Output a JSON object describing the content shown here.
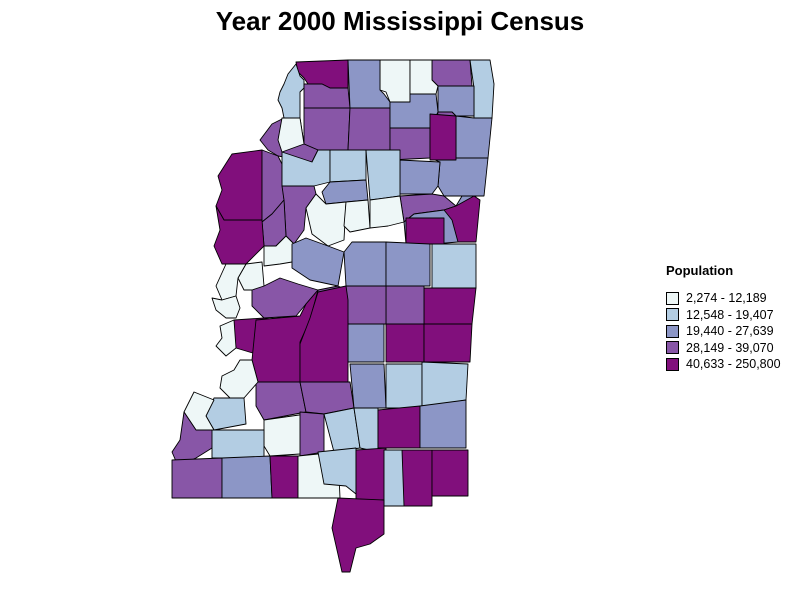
{
  "title": "Year 2000 Mississippi Census",
  "legend": {
    "title": "Population",
    "items": [
      {
        "label": "2,274 - 12,189",
        "color": "#eef7f7"
      },
      {
        "label": "12,548 - 19,407",
        "color": "#b3cde3"
      },
      {
        "label": "19,440 - 27,639",
        "color": "#8c96c6"
      },
      {
        "label": "28,149 - 39,070",
        "color": "#8856a7"
      },
      {
        "label": "40,633 - 250,800",
        "color": "#810f7c"
      }
    ]
  },
  "counties": [
    {
      "cls": 4
    },
    {
      "cls": 1
    },
    {
      "cls": 3
    },
    {
      "cls": 0
    },
    {
      "cls": 2
    },
    {
      "cls": 3
    },
    {
      "cls": 1
    },
    {
      "cls": 0
    },
    {
      "cls": 2
    },
    {
      "cls": 3
    },
    {
      "cls": 3
    },
    {
      "cls": 2
    },
    {
      "cls": 2
    },
    {
      "cls": 3
    },
    {
      "cls": 0
    },
    {
      "cls": 3
    },
    {
      "cls": 3
    },
    {
      "cls": 2
    },
    {
      "cls": 4
    },
    {
      "cls": 2
    },
    {
      "cls": 4
    },
    {
      "cls": 3
    },
    {
      "cls": 1
    },
    {
      "cls": 1
    },
    {
      "cls": 1
    },
    {
      "cls": 2
    },
    {
      "cls": 3
    },
    {
      "cls": 3
    },
    {
      "cls": 4
    },
    {
      "cls": 3
    },
    {
      "cls": 0
    },
    {
      "cls": 0
    },
    {
      "cls": 0
    },
    {
      "cls": 2
    },
    {
      "cls": 4
    },
    {
      "cls": 4
    },
    {
      "cls": 0
    },
    {
      "cls": 0
    },
    {
      "cls": 0
    },
    {
      "cls": 2
    },
    {
      "cls": 2
    },
    {
      "cls": 1
    },
    {
      "cls": 3
    },
    {
      "cls": 0
    },
    {
      "cls": 3
    },
    {
      "cls": 4
    },
    {
      "cls": 2
    },
    {
      "cls": 3
    },
    {
      "cls": 4
    },
    {
      "cls": 3
    },
    {
      "cls": 2
    },
    {
      "cls": 0
    },
    {
      "cls": 4
    },
    {
      "cls": 4
    },
    {
      "cls": 4
    },
    {
      "cls": 4
    },
    {
      "cls": 3
    },
    {
      "cls": 0
    },
    {
      "cls": 3
    },
    {
      "cls": 2
    },
    {
      "cls": 1
    },
    {
      "cls": 1
    },
    {
      "cls": 1
    },
    {
      "cls": 0
    },
    {
      "cls": 0
    },
    {
      "cls": 3
    },
    {
      "cls": 1
    },
    {
      "cls": 1
    },
    {
      "cls": 4
    },
    {
      "cls": 2
    },
    {
      "cls": 3
    },
    {
      "cls": 1
    },
    {
      "cls": 3
    },
    {
      "cls": 2
    },
    {
      "cls": 4
    },
    {
      "cls": 0
    },
    {
      "cls": 1
    },
    {
      "cls": 4
    },
    {
      "cls": 4
    },
    {
      "cls": 1
    },
    {
      "cls": 4
    },
    {
      "cls": 4
    }
  ]
}
